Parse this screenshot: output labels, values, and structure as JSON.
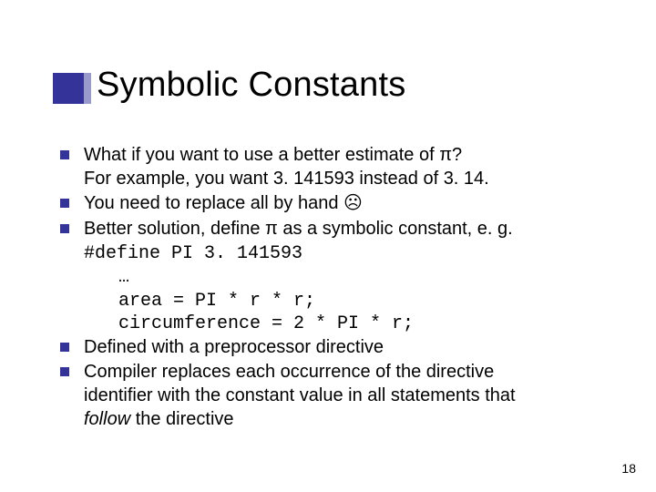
{
  "colors": {
    "bullet": "#333399",
    "accent_light": "#9999cc",
    "background": "#ffffff",
    "text": "#000000"
  },
  "title": "Symbolic Constants",
  "bullets": {
    "b1a": "What if you want to use a better estimate of π?",
    "b1b": "For example, you want 3. 141593 instead of 3. 14.",
    "b2": "You need to replace all by hand ☹",
    "b3": "Better solution, define π as a symbolic constant, e. g.",
    "b4": "Defined with a preprocessor directive",
    "b5a": "Compiler replaces each occurrence of the directive",
    "b5b": "identifier with the constant value in all statements that",
    "b5c_italic": "follow",
    "b5c_rest": " the directive"
  },
  "code": {
    "l1": "#define PI 3. 141593",
    "l2": " …",
    "l3": " area = PI * r * r;",
    "l4": " circumference = 2 * PI * r;"
  },
  "page_number": "18",
  "typography": {
    "title_fontsize": 38,
    "body_fontsize": 20,
    "code_font": "Courier New",
    "body_font": "Verdana"
  }
}
